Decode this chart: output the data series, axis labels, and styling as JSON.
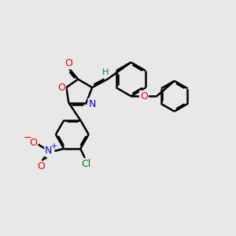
{
  "background_color": "#e8e8e8",
  "figure_size": [
    3.0,
    3.0
  ],
  "dpi": 100,
  "bond_color": "#000000",
  "bond_width": 1.8,
  "atom_colors": {
    "O": "#ff0000",
    "N": "#0000ff",
    "Cl": "#008000",
    "H": "#008080",
    "C": "#000000"
  },
  "font_size_atoms": 9,
  "xlim": [
    0,
    10
  ],
  "ylim": [
    0,
    10
  ]
}
